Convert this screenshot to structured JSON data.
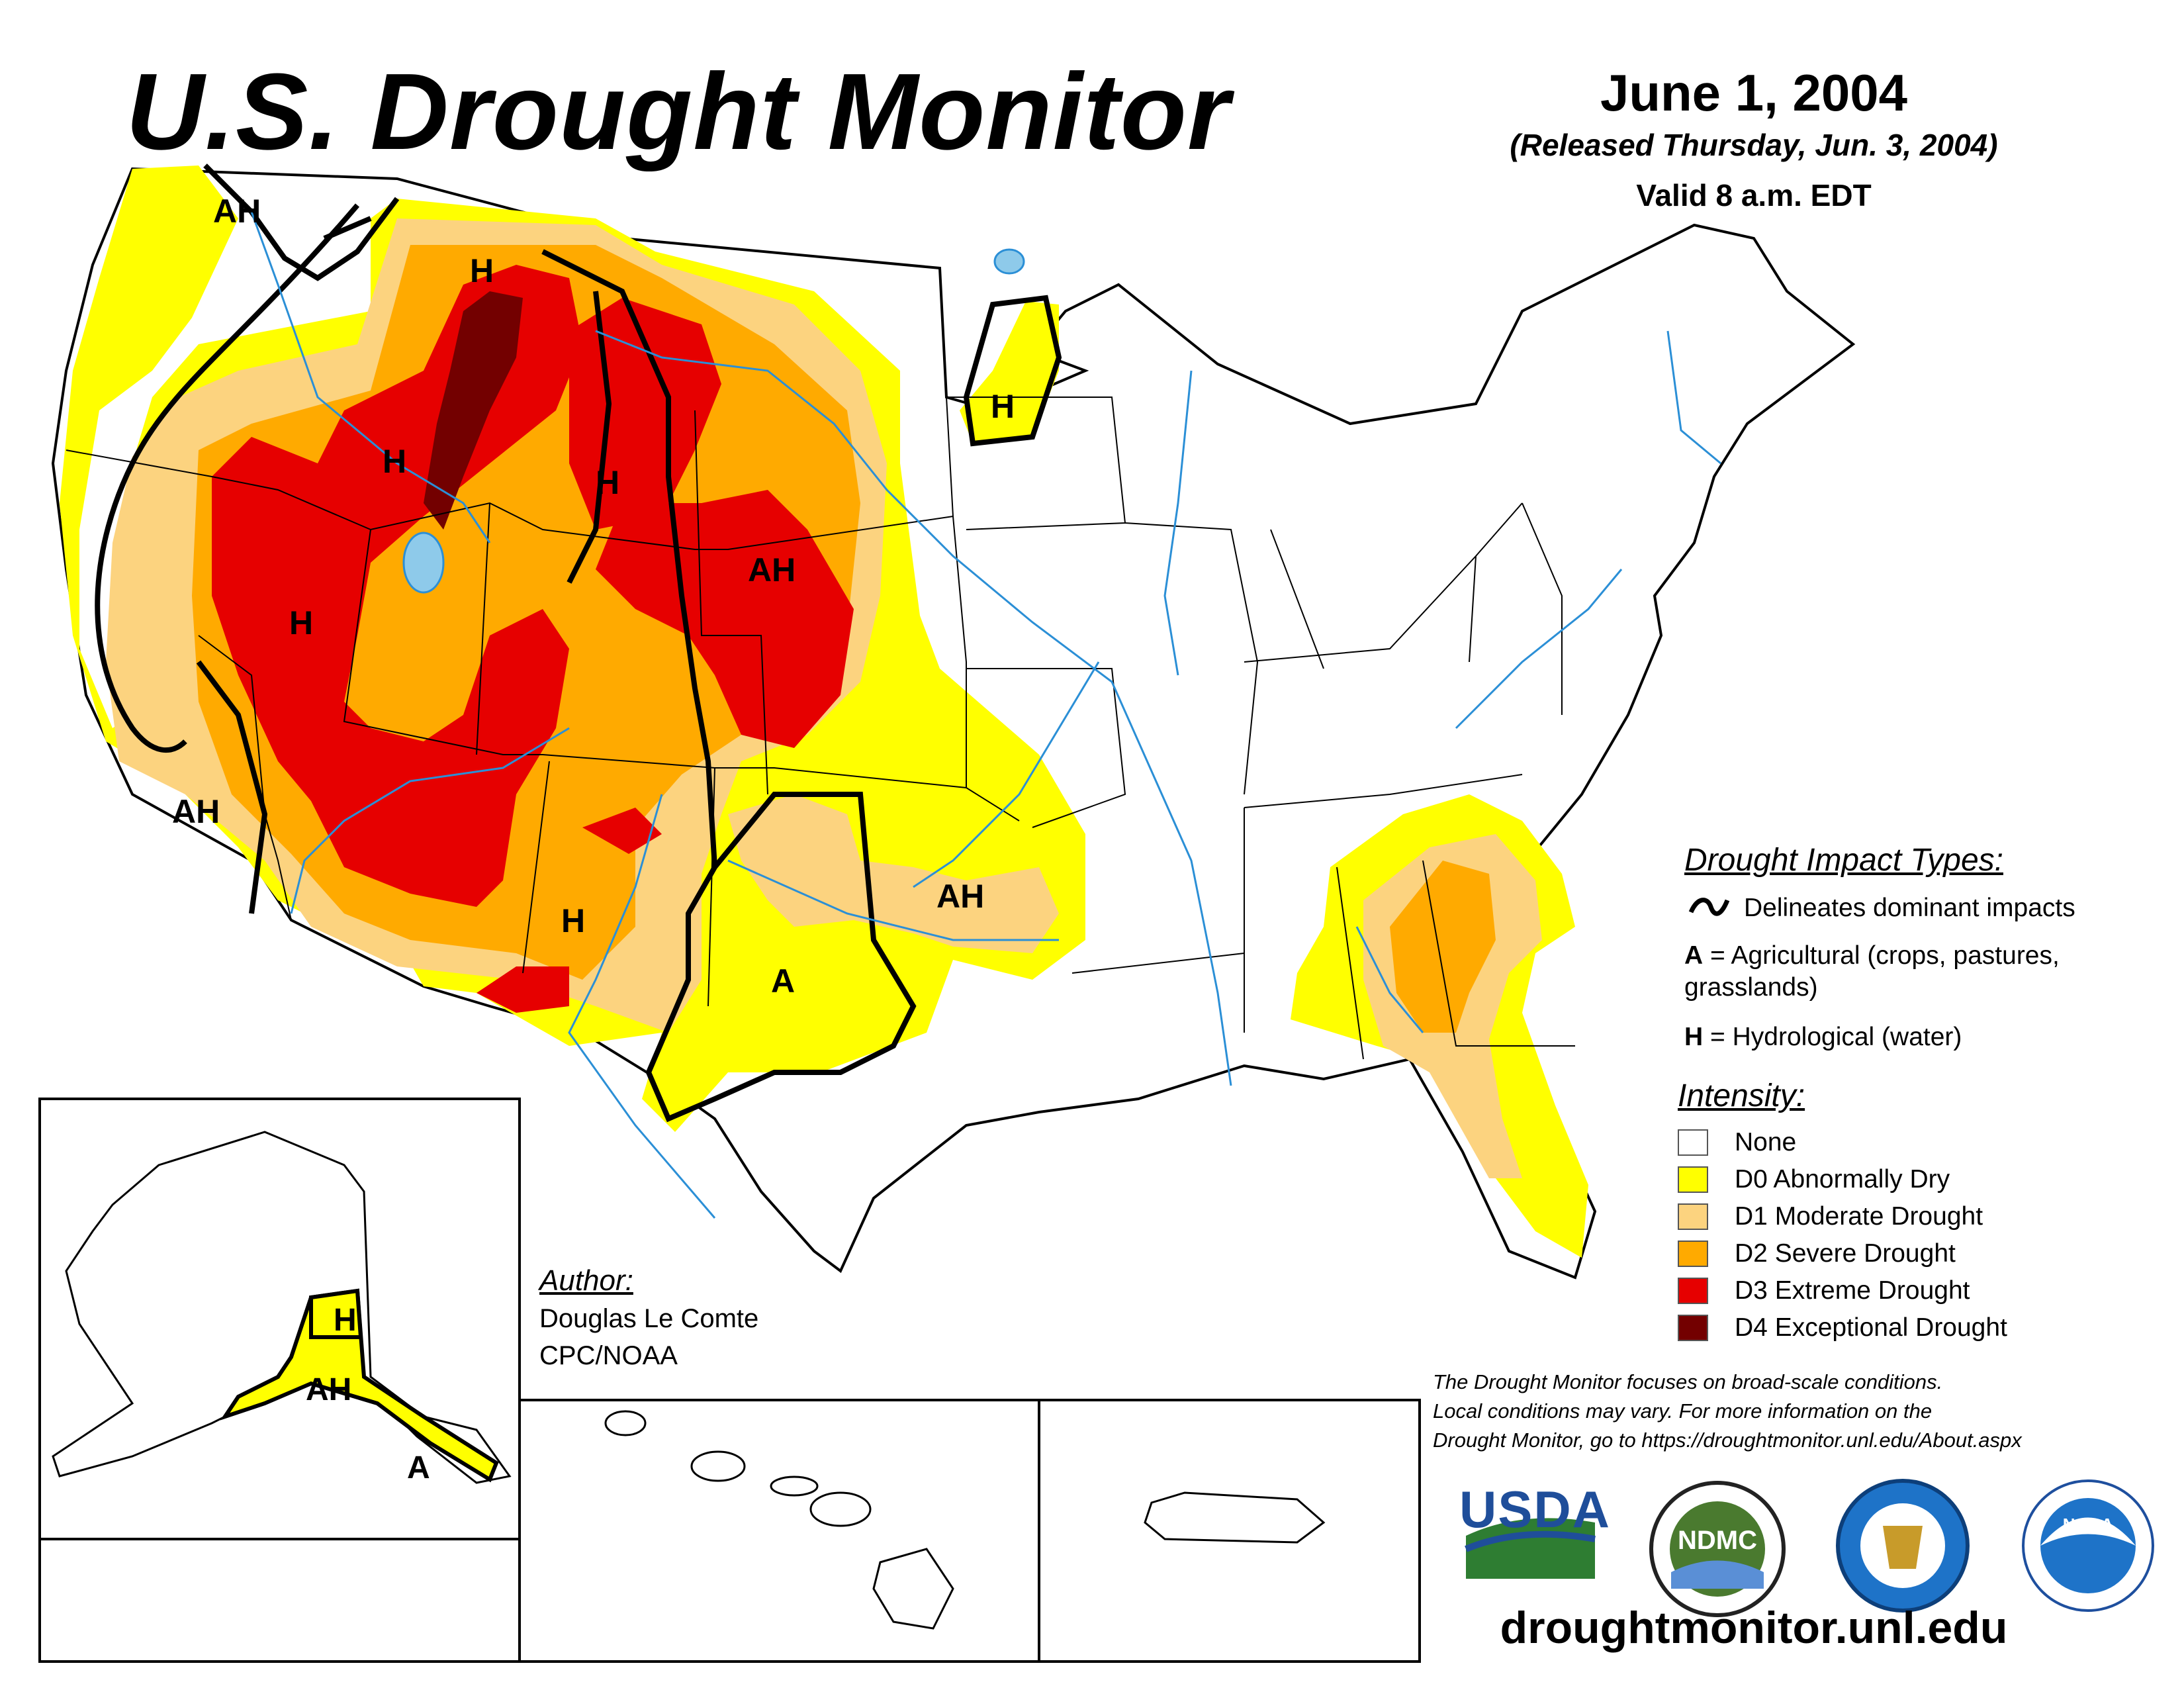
{
  "header": {
    "title": "U.S. Drought Monitor",
    "date": "June 1, 2004",
    "released": "(Released Thursday, Jun. 3, 2004)",
    "valid": "Valid 8 a.m. EDT"
  },
  "map_labels": {
    "ah_washington": "AH",
    "h_montana": "H",
    "h_idaho": "H",
    "h_wyoming": "H",
    "ah_south_dakota": "AH",
    "h_minnesota": "H",
    "h_nevada": "H",
    "ah_california": "AH",
    "h_new_mexico": "H",
    "ah_oklahoma": "AH",
    "a_texas": "A",
    "h_alaska": "H",
    "ah_alaska": "AH",
    "a_alaska": "A"
  },
  "impact_legend": {
    "heading": "Drought Impact Types:",
    "delineates": "Delineates dominant impacts",
    "a_code": "A",
    "a_text": "= Agricultural (crops, pastures,",
    "a_text2": "grasslands)",
    "h_code": "H",
    "h_text": "= Hydrological (water)"
  },
  "intensity_legend": {
    "heading": "Intensity:",
    "items": [
      {
        "label": "None",
        "color": "#ffffff"
      },
      {
        "label": "D0 Abnormally Dry",
        "color": "#ffff00"
      },
      {
        "label": "D1 Moderate Drought",
        "color": "#fcd37f"
      },
      {
        "label": "D2 Severe Drought",
        "color": "#ffaa00"
      },
      {
        "label": "D3 Extreme Drought",
        "color": "#e60000"
      },
      {
        "label": "D4 Exceptional Drought",
        "color": "#730000"
      }
    ]
  },
  "author": {
    "heading": "Author:",
    "name": "Douglas Le Comte",
    "org": "CPC/NOAA"
  },
  "disclaimer": {
    "line1": "The Drought Monitor focuses on broad-scale conditions.",
    "line2": "Local conditions may vary. For more information on the",
    "line3": "Drought Monitor, go to https://droughtmonitor.unl.edu/About.aspx"
  },
  "logos": {
    "usda": "USDA",
    "ndmc": "NDMC",
    "noaa": "NOAA"
  },
  "url": "droughtmonitor.unl.edu"
}
